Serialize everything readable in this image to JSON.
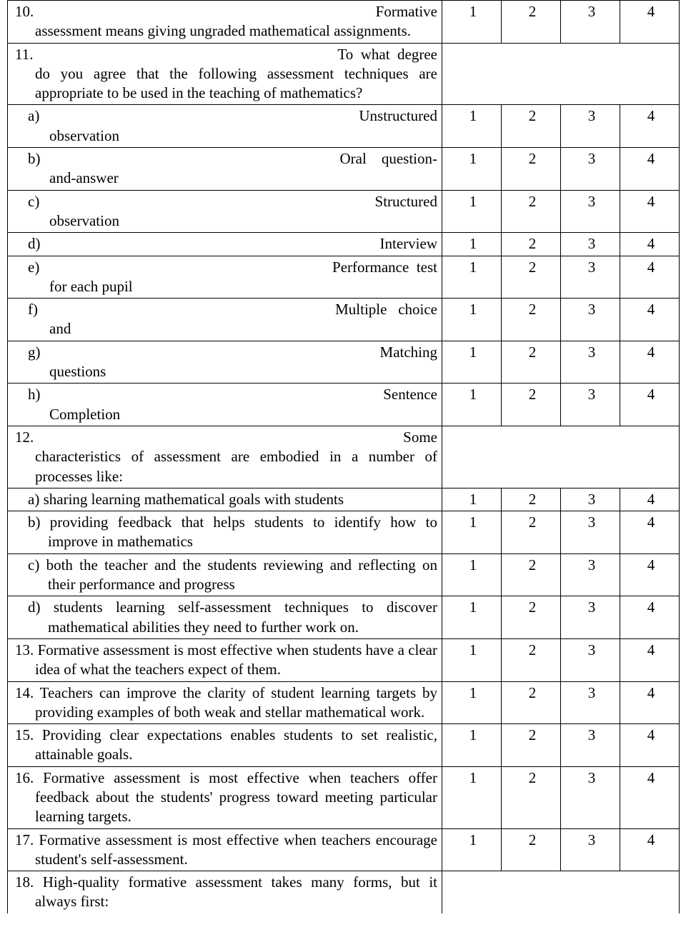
{
  "ratings": [
    "1",
    "2",
    "3",
    "4"
  ],
  "q10": {
    "num": "10.",
    "firstRight": "Formative",
    "body": "assessment means giving ungraded mathematical assignments."
  },
  "q11": {
    "num": "11.",
    "firstRight": "To  what  degree",
    "body": "do you agree that the following assessment techniques are appropriate to be used in the teaching of mathematics?",
    "subs": [
      {
        "letter": "a)",
        "right": "Unstructured",
        "line2": "observation"
      },
      {
        "letter": "b)",
        "right": "Oral    question-",
        "line2": "and-answer"
      },
      {
        "letter": "c)",
        "right": "Structured",
        "line2": "observation"
      },
      {
        "letter": "d)",
        "right": "Interview",
        "line2": ""
      },
      {
        "letter": "e)",
        "right": "Performance  test",
        "line2": "for each pupil"
      },
      {
        "letter": "f)",
        "right": "Multiple   choice",
        "line2": "and"
      },
      {
        "letter": "g)",
        "right": "Matching",
        "line2": "questions"
      },
      {
        "letter": "h)",
        "right": "Sentence",
        "line2": "Completion"
      }
    ]
  },
  "q12": {
    "num": "12.",
    "firstRight": "Some",
    "body": "characteristics of assessment are embodied in a number of processes like:",
    "subs": [
      {
        "letter": "a)",
        "text": "sharing learning mathematical goals with students"
      },
      {
        "letter": "b)",
        "text": "providing feedback that helps students to identify how to improve in mathematics"
      },
      {
        "letter": "c)",
        "text": "both the teacher and the students reviewing and reflecting on their performance and progress"
      },
      {
        "letter": "d)",
        "text": "students learning self-assessment techniques to discover mathematical abilities they need to further work on."
      }
    ]
  },
  "q13": {
    "text": "13. Formative assessment is most effective when students have a clear idea of what the teachers expect of them."
  },
  "q14": {
    "text": "14. Teachers can improve the clarity of student learning targets by providing examples of both weak and stellar mathematical work."
  },
  "q15": {
    "text": "15. Providing clear expectations enables students to set realistic, attainable goals."
  },
  "q16": {
    "text": "16. Formative assessment is most effective when teachers offer feedback about the students' progress toward meeting particular learning targets."
  },
  "q17": {
    "text": "17. Formative assessment is most effective when teachers encourage student's self-assessment."
  },
  "q18": {
    "text": "18. High-quality formative assessment takes many forms, but it always first:"
  }
}
